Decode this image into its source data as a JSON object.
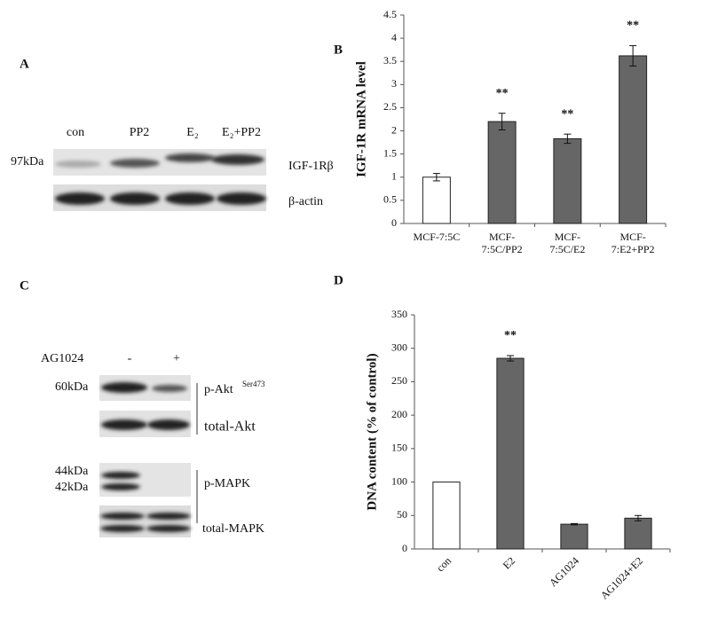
{
  "panel_labels": [
    "A",
    "B",
    "C",
    "D"
  ],
  "blot_a": {
    "lanes": [
      "con",
      "PP2",
      "E₂",
      "E₂+PP2"
    ],
    "marker": "97kDa",
    "rows": [
      "IGF-1Rβ",
      "β-actin"
    ]
  },
  "blot_c": {
    "treatment": "AG1024",
    "lanes": [
      "-",
      "+"
    ],
    "markers": [
      "60kDa",
      "44kDa",
      "42kDa"
    ],
    "rows": [
      "p-Akt",
      "total-Akt",
      "p-MAPK",
      "total-MAPK"
    ],
    "superscript": "Ser473"
  },
  "chart_data": [
    {
      "type": "bar",
      "y_label": "IGF-1R mRNA level",
      "categories": [
        "MCF-7:5C",
        "MCF-7:5C/PP2",
        "MCF-7:5C/E2",
        "MCF-7:E2+PP2"
      ],
      "values": [
        1.0,
        2.2,
        1.83,
        3.62
      ],
      "errors": [
        0.08,
        0.18,
        0.1,
        0.22
      ],
      "colors": [
        "#ffffff",
        "#666666",
        "#666666",
        "#666666"
      ],
      "value_annotations": [
        null,
        "**",
        "**",
        "**"
      ],
      "ylim": [
        0,
        4.5
      ],
      "yticks": [
        0,
        0.5,
        1,
        1.5,
        2,
        2.5,
        3,
        3.5,
        4,
        4.5
      ],
      "grid": false
    },
    {
      "type": "bar",
      "y_label": "DNA content (% of control)",
      "categories": [
        "con",
        "E2",
        "AG1024",
        "AG1024+E2"
      ],
      "values": [
        100,
        285,
        37,
        46
      ],
      "errors": [
        null,
        4,
        1,
        4
      ],
      "colors": [
        "#ffffff",
        "#666666",
        "#666666",
        "#666666"
      ],
      "value_annotations": [
        null,
        "**",
        null,
        null
      ],
      "ylim": [
        0,
        350
      ],
      "yticks": [
        0,
        50,
        100,
        150,
        200,
        250,
        300,
        350
      ],
      "grid": false
    }
  ]
}
